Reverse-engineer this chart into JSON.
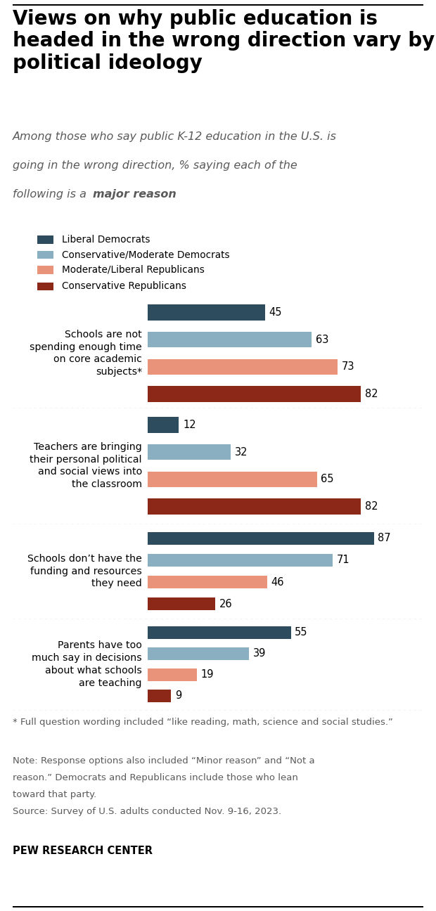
{
  "title": "Views on why public education is\nheaded in the wrong direction vary by\npolitical ideology",
  "subtitle_line1": "Among those who say public K-12 education in the U.S. is",
  "subtitle_line2": "going in the wrong direction, % saying each of the",
  "subtitle_line3_plain": "following is a ",
  "subtitle_line3_bold": "major reason",
  "categories": [
    "Schools are not\nspending enough time\non core academic\nsubjects*",
    "Teachers are bringing\ntheir personal political\nand social views into\nthe classroom",
    "Schools don’t have the\nfunding and resources\nthey need",
    "Parents have too\nmuch say in decisions\nabout what schools\nare teaching"
  ],
  "legend_labels": [
    "Liberal Democrats",
    "Conservative/Moderate Democrats",
    "Moderate/Liberal Republicans",
    "Conservative Republicans"
  ],
  "colors": [
    "#2d4d5f",
    "#8aafc0",
    "#e8937a",
    "#8b2818"
  ],
  "data": [
    [
      45,
      63,
      73,
      82
    ],
    [
      12,
      32,
      65,
      82
    ],
    [
      87,
      71,
      46,
      26
    ],
    [
      55,
      39,
      19,
      9
    ]
  ],
  "footnote1": "* Full question wording included “like reading, math, science and social studies.”",
  "footnote2_line1": "Note: Response options also included “Minor reason” and “Not a",
  "footnote2_line2": "reason.” Democrats and Republicans include those who lean",
  "footnote2_line3": "toward that party.",
  "footnote2_line4": "Source: Survey of U.S. adults conducted Nov. 9-16, 2023.",
  "source_label": "PEW RESEARCH CENTER",
  "background_color": "#ffffff",
  "xlim": [
    0,
    100
  ],
  "fig_width": 6.2,
  "fig_height": 12.96,
  "dpi": 100
}
